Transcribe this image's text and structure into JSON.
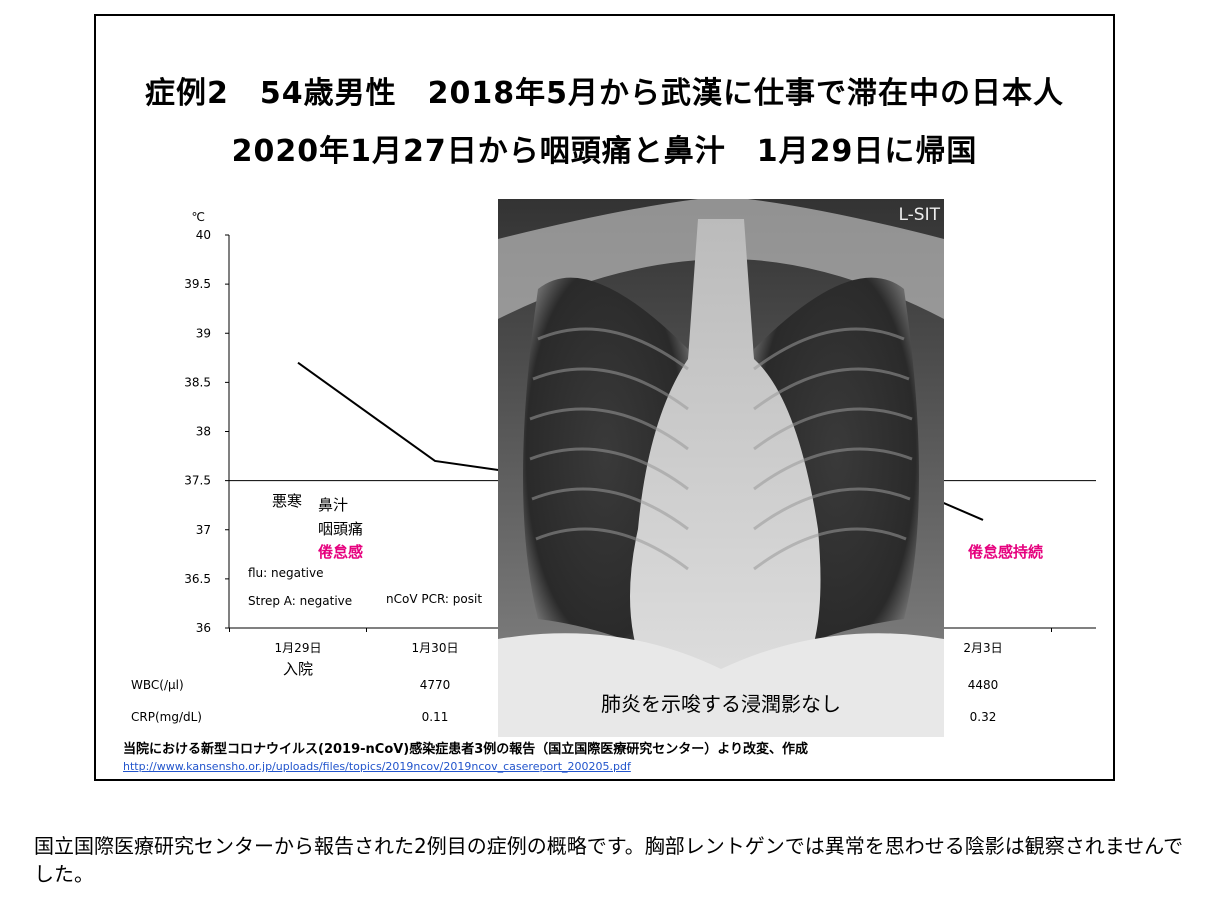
{
  "slide": {
    "title_line1": "症例2　54歳男性　2018年5月から武漢に仕事で滞在中の日本人",
    "title_line2": "2020年1月27日から咽頭痛と鼻汁　1月29日に帰国",
    "source": "当院における新型コロナウイルス(2019-nCoV)感染症患者3例の報告（国立国際医療研究センター）より改変、作成",
    "link": "http://www.kansensho.or.jp/uploads/files/topics/2019ncov/2019ncov_casereport_200205.pdf",
    "xray_marker": "L-SIT",
    "xray_caption": "肺炎を示唆する浸潤影なし"
  },
  "note": "国立国際医療研究センターから報告された2例目の症例の概略です。胸部レントゲンでは異常を思わせる陰影は観察されませんでした。",
  "chart_data": {
    "type": "line",
    "y_unit": "℃",
    "ylim": [
      36,
      40
    ],
    "yticks": [
      "40",
      "39.5",
      "39",
      "38.5",
      "38",
      "37.5",
      "37",
      "36.5",
      "36"
    ],
    "categories": [
      "1月29日",
      "1月30日",
      "",
      "",
      "",
      "2月3日"
    ],
    "series": [
      {
        "x": [
          0,
          1,
          1.5
        ],
        "values": [
          38.7,
          37.7,
          37.6
        ]
      },
      {
        "x": [
          4.5,
          5
        ],
        "values": [
          37.4,
          37.1
        ]
      }
    ],
    "reference_line": 37.5,
    "admission_label": "入院",
    "rows": [
      {
        "label": "WBC(/μl)",
        "values": [
          "",
          "4770",
          "",
          "",
          "",
          "4480"
        ]
      },
      {
        "label": "CRP(mg/dL)",
        "values": [
          "",
          "0.11",
          "",
          "",
          "",
          "0.32"
        ]
      }
    ],
    "annotations": {
      "chills": "悪寒",
      "nasal": "鼻汁",
      "throat": "咽頭痛",
      "fatigue": "倦怠感",
      "fatigue_cont": "倦怠感持続",
      "flu": "flu: negative",
      "strep": "Strep A: negative",
      "ncov": "nCoV PCR: posit"
    },
    "colors": {
      "line": "#000000",
      "highlight": "#e6007e"
    }
  }
}
